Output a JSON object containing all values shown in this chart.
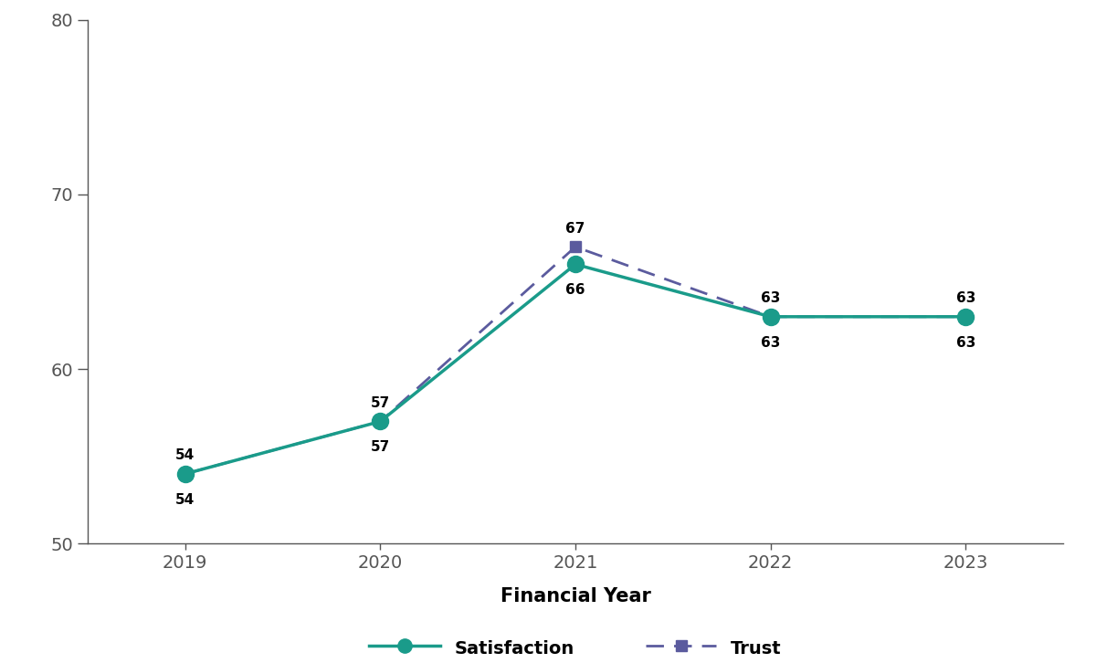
{
  "years": [
    2019,
    2020,
    2021,
    2022,
    2023
  ],
  "satisfaction": [
    54,
    57,
    66,
    63,
    63
  ],
  "trust": [
    54,
    57,
    67,
    63,
    63
  ],
  "satisfaction_color": "#1a9b8a",
  "trust_color": "#5b5b9e",
  "xlabel": "Financial Year",
  "ylim": [
    50,
    80
  ],
  "yticks": [
    50,
    60,
    70,
    80
  ],
  "background_color": "#ffffff",
  "label_fontsize": 11,
  "axis_label_fontsize": 15,
  "tick_fontsize": 14,
  "legend_fontsize": 14,
  "spine_color": "#555555"
}
